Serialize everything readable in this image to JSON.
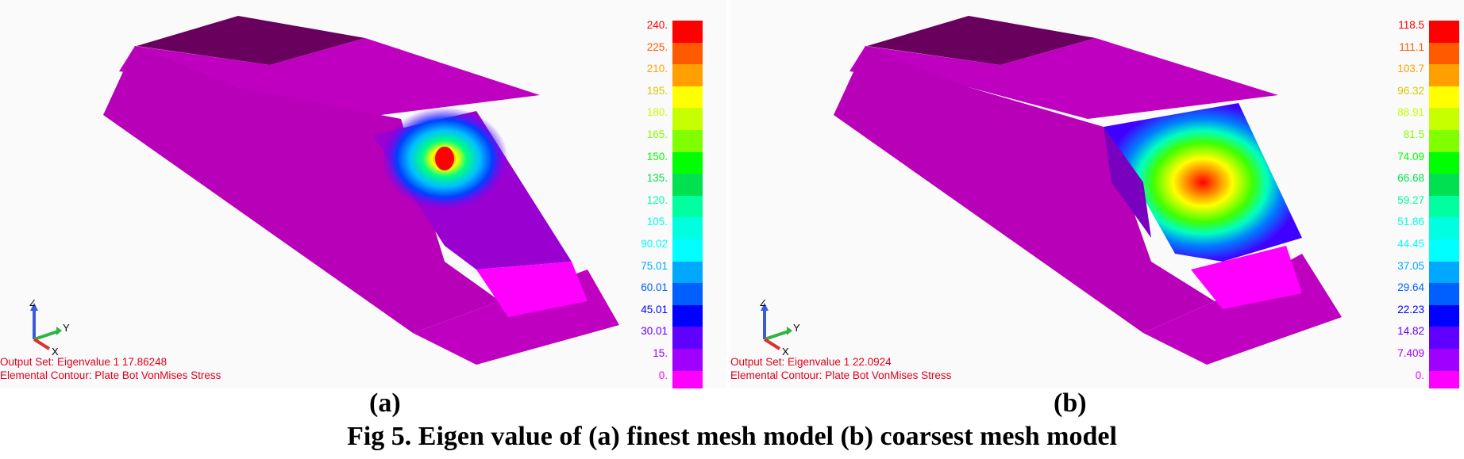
{
  "panels": [
    {
      "id": "a",
      "legend": [
        "240.",
        "225.",
        "210.",
        "195.",
        "180.",
        "165.",
        "150.",
        "135.",
        "120.",
        "105.",
        "90.02",
        "75.01",
        "60.01",
        "45.01",
        "30.01",
        "15.",
        "0."
      ],
      "output_set": "Output Set: Eigenvalue 1 17.86248",
      "contour": "Elemental Contour: Plate Bot VonMises Stress",
      "sublabel": "(a)"
    },
    {
      "id": "b",
      "legend": [
        "118.5",
        "111.1",
        "103.7",
        "96.32",
        "88.91",
        "81.5",
        "74.09",
        "66.68",
        "59.27",
        "51.86",
        "44.45",
        "37.05",
        "29.64",
        "22.23",
        "14.82",
        "7.409",
        "0."
      ],
      "output_set": "Output Set: Eigenvalue 1 22.0924",
      "contour": "Elemental Contour: Plate Bot VonMises Stress",
      "sublabel": "(b)"
    }
  ],
  "legend_colors": [
    "#ff0000",
    "#ff5a00",
    "#ffa000",
    "#ffff00",
    "#c8ff00",
    "#80ff00",
    "#00ff00",
    "#00e050",
    "#00ffa0",
    "#00ffe0",
    "#00ffff",
    "#00a8ff",
    "#0060ff",
    "#0000ff",
    "#6000ff",
    "#a000ff",
    "#ff00ff"
  ],
  "axes": {
    "z": "Z",
    "y": "Y",
    "x": "X"
  },
  "caption": "Fig 5. Eigen value of (a) finest mesh model (b) coarsest mesh model"
}
